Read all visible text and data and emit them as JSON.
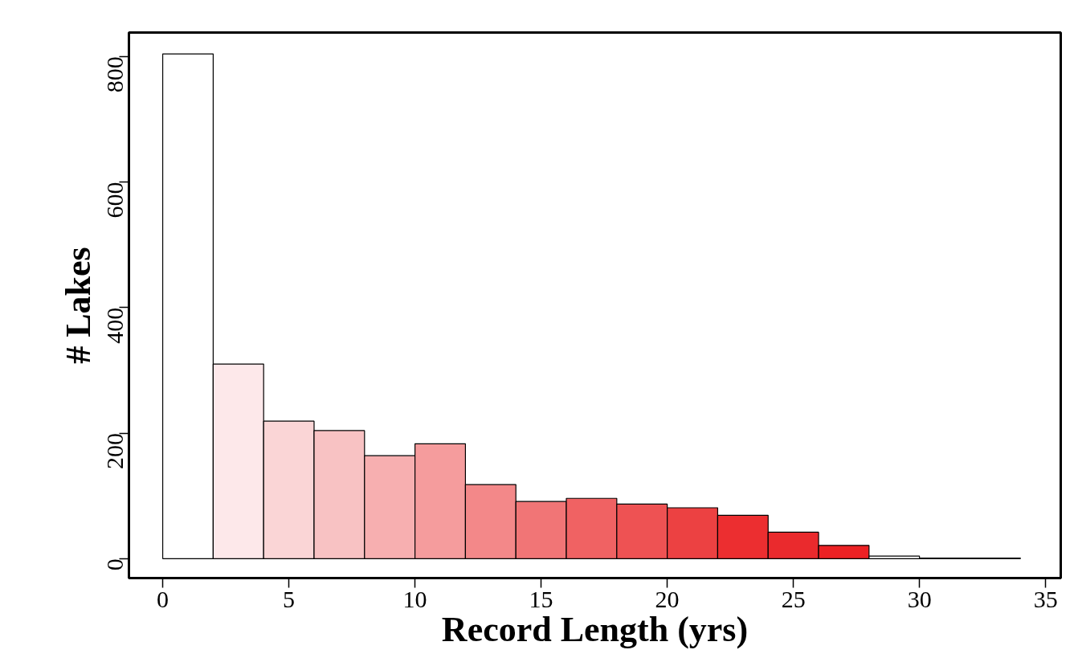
{
  "chart_data": {
    "type": "histogram",
    "xlabel": "Record Length (yrs)",
    "ylabel": "# Lakes",
    "bins": [
      0,
      2,
      4,
      6,
      8,
      10,
      12,
      14,
      16,
      18,
      20,
      22,
      24,
      26,
      28,
      30,
      32,
      34
    ],
    "values": [
      804,
      310,
      219,
      204,
      164,
      183,
      118,
      91,
      96,
      87,
      81,
      69,
      42,
      21,
      4,
      1,
      1
    ],
    "colors": [
      "#ffffff",
      "#fde8ea",
      "#fad5d6",
      "#f8c2c3",
      "#f7afb0",
      "#f59c9d",
      "#f38889",
      "#f17576",
      "#f06263",
      "#ee5253",
      "#ec4142",
      "#ec2e30",
      "#ea2a2d",
      "#ec2124",
      "#ffffff",
      "#ffffff",
      "#ffffff"
    ],
    "xlim": [
      -1.34,
      35.6
    ],
    "ylim": [
      -31,
      838
    ],
    "xticks": [
      0,
      5,
      10,
      15,
      20,
      25,
      30,
      35
    ],
    "yticks": [
      0,
      200,
      400,
      600,
      800
    ],
    "grid": false
  }
}
